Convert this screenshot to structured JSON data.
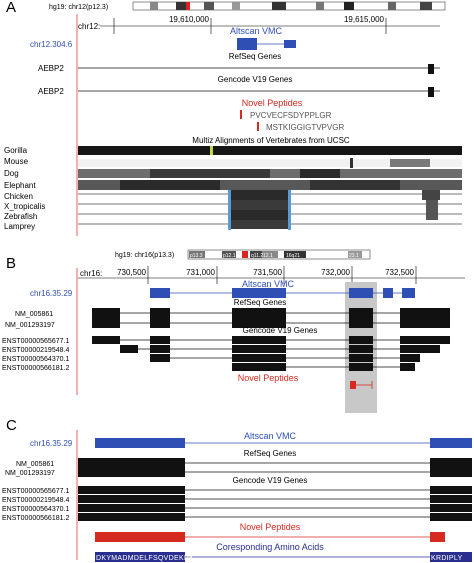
{
  "panels": [
    {
      "letter": "A",
      "ideogram_label": "hg19: chr12(p12.3)",
      "chr_label": "chr12:",
      "ticks": [
        "19,610,000",
        "19,615,000"
      ],
      "sidebar_label": "chr12.304.6",
      "vmc_label": "Altscan VMC",
      "refseq_label": "RefSeq Genes",
      "refseq_rows": [
        "AEBP2"
      ],
      "gencode_label": "Gencode V19 Genes",
      "gencode_rows": [
        "AEBP2"
      ],
      "peptides_label": "Novel Peptides",
      "peptides": [
        "PVCVECFSDYPPLGR",
        "MSTKIGGIGTVPVGR"
      ],
      "multiz_label": "Multiz Alignments of Vertebrates from UCSC",
      "species": [
        "Gorilla",
        "Mouse",
        "Dog",
        "Elephant",
        "Chicken",
        "X_tropicalis",
        "Zebrafish",
        "Lamprey"
      ]
    },
    {
      "letter": "B",
      "ideogram_label": "hg19: chr16(p13.3)",
      "ideogram_bands": [
        "p13.3",
        "p12.1",
        "q11.2",
        "12.1",
        "16q21",
        "23.1"
      ],
      "chr_label": "chr16:",
      "ticks": [
        "730,500",
        "731,000",
        "731,500",
        "732,000",
        "732,500"
      ],
      "sidebar_label": "chr16.35.29",
      "vmc_label": "Altscan VMC",
      "refseq_label": "RefSeq Genes",
      "refseq_rows": [
        "NM_005861",
        "NM_001293197"
      ],
      "gencode_label": "Gencode V19 Genes",
      "gencode_rows": [
        "ENST00000565677.1",
        "ENST00000219548.4",
        "ENST00000564370.1",
        "ENST00000566181.2"
      ],
      "peptides_label": "Novel Peptides"
    },
    {
      "letter": "C",
      "sidebar_label": "chr16.35.29",
      "vmc_label": "Altscan VMC",
      "refseq_label": "RefSeq Genes",
      "refseq_rows": [
        "NM_005861",
        "NM_001293197"
      ],
      "gencode_label": "Gencode V19 Genes",
      "gencode_rows": [
        "ENST00000565677.1",
        "ENST00000219548.4",
        "ENST00000564370.1",
        "ENST00000566181.2"
      ],
      "peptides_label": "Novel Peptides",
      "amino_label": "Coresponding Amino Acids",
      "amino_left": "DKYMADMDELFSQVDEKRK",
      "amino_right": "KRDIPLY"
    }
  ],
  "colors": {
    "vmc": "#2f4fb5",
    "peptide": "#d42a20",
    "gene": "#111111",
    "amino_bg": "#2a2f8f",
    "highlight": "#c8c8c8",
    "axis_red": "#e43b3b"
  }
}
